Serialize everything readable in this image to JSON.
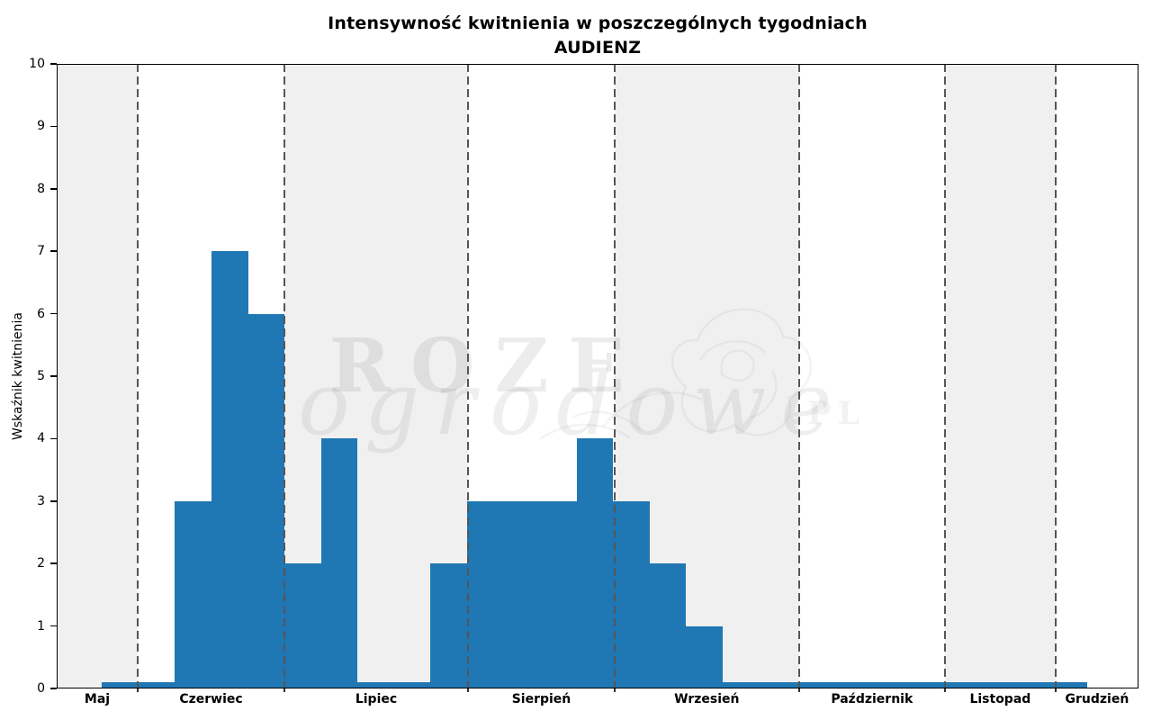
{
  "title": {
    "line1": "Intensywność kwitnienia w poszczególnych tygodniach",
    "line2": "AUDIENZ"
  },
  "y_axis": {
    "label": "Wskaźnik kwitnienia",
    "min": 0,
    "max": 10,
    "ticks": [
      0,
      1,
      2,
      3,
      4,
      5,
      6,
      7,
      8,
      9,
      10
    ]
  },
  "months": [
    {
      "name": "Maj",
      "start_pct": 0,
      "end_pct": 7.49,
      "shaded": true
    },
    {
      "name": "Czerwiec",
      "start_pct": 7.49,
      "end_pct": 21.05,
      "shaded": false
    },
    {
      "name": "Lipiec",
      "start_pct": 21.05,
      "end_pct": 38.02,
      "shaded": true
    },
    {
      "name": "Sierpień",
      "start_pct": 38.02,
      "end_pct": 51.58,
      "shaded": false
    },
    {
      "name": "Wrzesień",
      "start_pct": 51.58,
      "end_pct": 68.61,
      "shaded": true
    },
    {
      "name": "Październik",
      "start_pct": 68.61,
      "end_pct": 82.11,
      "shaded": false
    },
    {
      "name": "Listopad",
      "start_pct": 82.11,
      "end_pct": 92.33,
      "shaded": true
    },
    {
      "name": "Grudzień",
      "start_pct": 92.33,
      "end_pct": 100,
      "shaded": false
    }
  ],
  "bars": {
    "first_left_pct": 4.19,
    "width_pct": 3.374,
    "values": [
      0.1,
      0.1,
      3,
      7,
      6,
      2,
      4,
      0.1,
      0.1,
      2,
      3,
      3,
      3,
      4,
      3,
      2,
      1,
      0.1,
      0.1,
      0.1,
      0.1,
      0.1,
      0.1,
      0.1,
      0.1,
      0.1,
      0.1
    ]
  },
  "watermark": {
    "word1": "ROZE",
    "word2": "ogrodowe",
    "suffix": ".PL"
  },
  "colors": {
    "bar": "#1f77b4",
    "band_shaded": "#f0f0f0",
    "band_plain": "#ffffff",
    "separator": "#565656",
    "spine": "#000000"
  },
  "chart_data": {
    "type": "bar",
    "title": "Intensywność kwitnienia w poszczególnych tygodniach",
    "subtitle": "AUDIENZ",
    "xlabel": "",
    "ylabel": "Wskaźnik kwitnienia",
    "ylim": [
      0,
      10
    ],
    "grid": false,
    "legend": "none",
    "x_unit": "kolejne tygodnie (weekly bars, maj–grudzień)",
    "categories_months": [
      "Maj",
      "Czerwiec",
      "Lipiec",
      "Sierpień",
      "Wrzesień",
      "Październik",
      "Listopad",
      "Grudzień"
    ],
    "weekly_values": [
      0.1,
      0.1,
      3,
      7,
      6,
      2,
      4,
      0.1,
      0.1,
      2,
      3,
      3,
      3,
      4,
      3,
      2,
      1,
      0.1,
      0.1,
      0.1,
      0.1,
      0.1,
      0.1,
      0.1,
      0.1,
      0.1,
      0.1
    ],
    "values_by_month": {
      "Maj": [
        0.1
      ],
      "Czerwiec": [
        0.1,
        3,
        7,
        6
      ],
      "Lipiec": [
        2,
        4,
        0.1,
        0.1,
        2
      ],
      "Sierpień": [
        3,
        3,
        3,
        4
      ],
      "Wrzesień": [
        3,
        2,
        1,
        0.1,
        0.1
      ],
      "Październik": [
        0.1,
        0.1,
        0.1,
        0.1
      ],
      "Listopad": [
        0.1,
        0.1,
        0.1
      ],
      "Grudzień": [
        0.1
      ]
    },
    "month_separators": "dashed gray vertical lines at month boundaries",
    "background_bands": "alternating light-gray / white bands per month starting gray at Maj"
  }
}
